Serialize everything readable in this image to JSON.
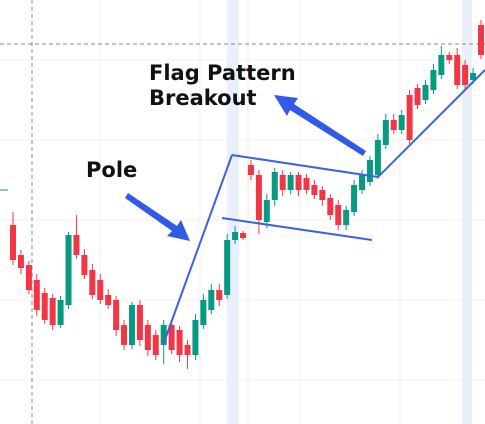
{
  "chart_data": {
    "type": "candlestick",
    "annotations": [
      "Flag Pattern",
      "Breakout",
      "Pole"
    ],
    "up_color": "#089981",
    "down_color": "#f23645",
    "ylim": [
      0,
      424
    ],
    "open": [
      199,
      169,
      159,
      144,
      131,
      126,
      99,
      119,
      189,
      169,
      154,
      144,
      129,
      124,
      99,
      79,
      119,
      99,
      89,
      79,
      99,
      94,
      79,
      69,
      99,
      114,
      134,
      129,
      184,
      191,
      259,
      249,
      202,
      224,
      249,
      234,
      249,
      246,
      239,
      234,
      226,
      219,
      199,
      212,
      234,
      242,
      249,
      279,
      304,
      294,
      329,
      336,
      324,
      334,
      349,
      369,
      369,
      359,
      344,
      399
    ],
    "high": [
      212,
      174,
      163,
      150,
      136,
      130,
      128,
      192,
      209,
      175,
      160,
      150,
      135,
      128,
      104,
      122,
      124,
      104,
      94,
      104,
      104,
      98,
      84,
      110,
      130,
      140,
      140,
      190,
      198,
      193,
      264,
      254,
      230,
      256,
      254,
      252,
      252,
      250,
      244,
      238,
      230,
      224,
      218,
      244,
      254,
      268,
      290,
      310,
      310,
      314,
      334,
      340,
      344,
      360,
      378,
      372,
      376,
      364,
      356,
      404
    ],
    "low": [
      159,
      150,
      130,
      108,
      100,
      94,
      96,
      115,
      165,
      145,
      125,
      120,
      115,
      88,
      74,
      75,
      78,
      68,
      64,
      60,
      70,
      62,
      55,
      64,
      95,
      110,
      118,
      125,
      180,
      184,
      244,
      190,
      196,
      218,
      228,
      230,
      228,
      230,
      225,
      218,
      204,
      194,
      194,
      208,
      230,
      238,
      245,
      275,
      290,
      290,
      280,
      315,
      320,
      330,
      345,
      360,
      335,
      334,
      340,
      365
    ],
    "close": [
      164,
      156,
      134,
      114,
      104,
      99,
      124,
      189,
      169,
      149,
      129,
      124,
      119,
      94,
      79,
      119,
      84,
      74,
      69,
      99,
      74,
      69,
      69,
      104,
      124,
      134,
      124,
      184,
      192,
      186,
      249,
      204,
      224,
      252,
      234,
      249,
      234,
      234,
      229,
      224,
      209,
      199,
      214,
      239,
      249,
      264,
      284,
      304,
      294,
      309,
      284,
      319,
      339,
      354,
      369,
      364,
      339,
      339,
      351,
      369
    ]
  }
}
